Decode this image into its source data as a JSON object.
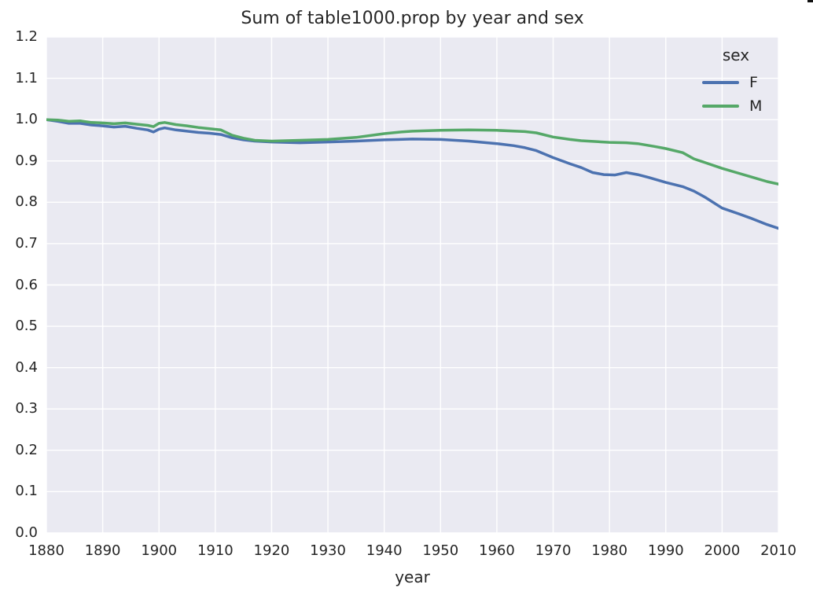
{
  "chart_data": {
    "type": "line",
    "title": "Sum of table1000.prop by year and sex",
    "xlabel": "year",
    "ylabel": "",
    "xlim": [
      1880,
      2010
    ],
    "ylim": [
      0.0,
      1.2
    ],
    "x_ticks": [
      "1880",
      "1890",
      "1900",
      "1910",
      "1920",
      "1930",
      "1940",
      "1950",
      "1960",
      "1970",
      "1980",
      "1990",
      "2000",
      "2010"
    ],
    "y_ticks": [
      "0.0",
      "0.1",
      "0.2",
      "0.3",
      "0.4",
      "0.5",
      "0.6",
      "0.7",
      "0.8",
      "0.9",
      "1.0",
      "1.1",
      "1.2"
    ],
    "grid": true,
    "legend_position": "upper right",
    "colors": {
      "plot_background": "#eaeaf2",
      "grid": "#ffffff",
      "text": "#262626",
      "series_F": "#4c72b0",
      "series_M": "#55a868"
    },
    "legend": {
      "title": "sex"
    },
    "series": [
      {
        "name": "F",
        "color": "#4c72b0",
        "points": [
          [
            1880,
            1.0
          ],
          [
            1882,
            0.996
          ],
          [
            1884,
            0.991
          ],
          [
            1886,
            0.991
          ],
          [
            1888,
            0.987
          ],
          [
            1890,
            0.985
          ],
          [
            1892,
            0.982
          ],
          [
            1894,
            0.984
          ],
          [
            1896,
            0.979
          ],
          [
            1898,
            0.975
          ],
          [
            1899,
            0.97
          ],
          [
            1900,
            0.977
          ],
          [
            1901,
            0.98
          ],
          [
            1903,
            0.975
          ],
          [
            1905,
            0.972
          ],
          [
            1907,
            0.969
          ],
          [
            1909,
            0.967
          ],
          [
            1911,
            0.964
          ],
          [
            1913,
            0.956
          ],
          [
            1915,
            0.951
          ],
          [
            1917,
            0.948
          ],
          [
            1920,
            0.946
          ],
          [
            1925,
            0.944
          ],
          [
            1930,
            0.946
          ],
          [
            1935,
            0.948
          ],
          [
            1940,
            0.951
          ],
          [
            1945,
            0.953
          ],
          [
            1950,
            0.952
          ],
          [
            1955,
            0.948
          ],
          [
            1960,
            0.942
          ],
          [
            1963,
            0.937
          ],
          [
            1965,
            0.932
          ],
          [
            1967,
            0.925
          ],
          [
            1970,
            0.908
          ],
          [
            1973,
            0.893
          ],
          [
            1975,
            0.884
          ],
          [
            1977,
            0.872
          ],
          [
            1979,
            0.867
          ],
          [
            1981,
            0.866
          ],
          [
            1983,
            0.872
          ],
          [
            1985,
            0.867
          ],
          [
            1987,
            0.86
          ],
          [
            1990,
            0.848
          ],
          [
            1993,
            0.838
          ],
          [
            1995,
            0.827
          ],
          [
            1997,
            0.812
          ],
          [
            2000,
            0.786
          ],
          [
            2003,
            0.772
          ],
          [
            2005,
            0.762
          ],
          [
            2008,
            0.746
          ],
          [
            2010,
            0.737
          ]
        ]
      },
      {
        "name": "M",
        "color": "#55a868",
        "points": [
          [
            1880,
            1.0
          ],
          [
            1882,
            0.999
          ],
          [
            1884,
            0.996
          ],
          [
            1886,
            0.997
          ],
          [
            1888,
            0.993
          ],
          [
            1890,
            0.992
          ],
          [
            1892,
            0.99
          ],
          [
            1894,
            0.992
          ],
          [
            1896,
            0.989
          ],
          [
            1898,
            0.986
          ],
          [
            1899,
            0.983
          ],
          [
            1900,
            0.991
          ],
          [
            1901,
            0.993
          ],
          [
            1903,
            0.988
          ],
          [
            1905,
            0.985
          ],
          [
            1907,
            0.981
          ],
          [
            1909,
            0.978
          ],
          [
            1911,
            0.975
          ],
          [
            1913,
            0.962
          ],
          [
            1915,
            0.955
          ],
          [
            1917,
            0.95
          ],
          [
            1920,
            0.948
          ],
          [
            1925,
            0.95
          ],
          [
            1930,
            0.952
          ],
          [
            1935,
            0.957
          ],
          [
            1940,
            0.966
          ],
          [
            1943,
            0.97
          ],
          [
            1945,
            0.972
          ],
          [
            1950,
            0.974
          ],
          [
            1955,
            0.975
          ],
          [
            1960,
            0.974
          ],
          [
            1965,
            0.971
          ],
          [
            1967,
            0.968
          ],
          [
            1970,
            0.958
          ],
          [
            1973,
            0.952
          ],
          [
            1975,
            0.949
          ],
          [
            1980,
            0.945
          ],
          [
            1983,
            0.944
          ],
          [
            1985,
            0.942
          ],
          [
            1988,
            0.935
          ],
          [
            1990,
            0.93
          ],
          [
            1993,
            0.92
          ],
          [
            1995,
            0.905
          ],
          [
            1997,
            0.896
          ],
          [
            2000,
            0.882
          ],
          [
            2003,
            0.87
          ],
          [
            2005,
            0.862
          ],
          [
            2008,
            0.85
          ],
          [
            2010,
            0.844
          ]
        ]
      }
    ]
  }
}
